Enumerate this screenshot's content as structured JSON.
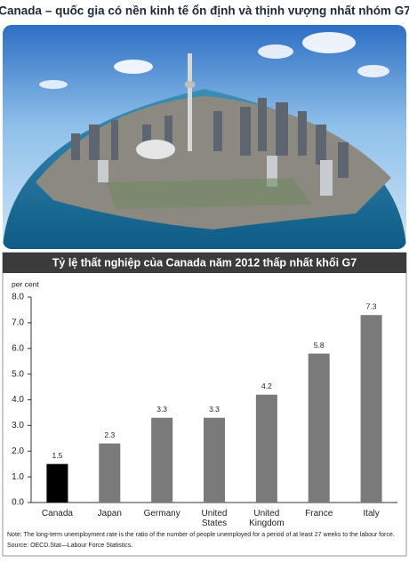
{
  "header": {
    "title": "Canada – quốc gia có nền kinh tế ổn định và thịnh vượng nhất nhóm G7"
  },
  "chart_data": {
    "type": "bar",
    "title": "Tỷ lệ thất nghiệp của Canada năm 2012 thấp nhất khối G7",
    "y_label": "per cent",
    "categories": [
      "Canada",
      "Japan",
      "Germany",
      "United States",
      "United Kingdom",
      "France",
      "Italy"
    ],
    "values": [
      1.5,
      2.3,
      3.3,
      3.3,
      4.2,
      5.8,
      7.3
    ],
    "colors": [
      "#000000",
      "#7a7a7a",
      "#7a7a7a",
      "#7a7a7a",
      "#7a7a7a",
      "#7a7a7a",
      "#7a7a7a"
    ],
    "ylim": [
      0,
      8
    ],
    "yticks": [
      {
        "value": 0,
        "label": "0.0"
      },
      {
        "value": 1,
        "label": "1.0"
      },
      {
        "value": 2,
        "label": "2.0"
      },
      {
        "value": 3,
        "label": "3.0"
      },
      {
        "value": 4,
        "label": "4.0"
      },
      {
        "value": 5,
        "label": "5.0"
      },
      {
        "value": 6,
        "label": "6.0"
      },
      {
        "value": 7,
        "label": "7.0"
      },
      {
        "value": 8,
        "label": "8.0"
      }
    ],
    "grid": false,
    "note": "Note: The long-term unemployment rate is the ratio of the number of people unemployed for a period of at least 27 weeks to the labour force.",
    "source": "Source: OECD.Stat—Labour Force Statistics."
  }
}
